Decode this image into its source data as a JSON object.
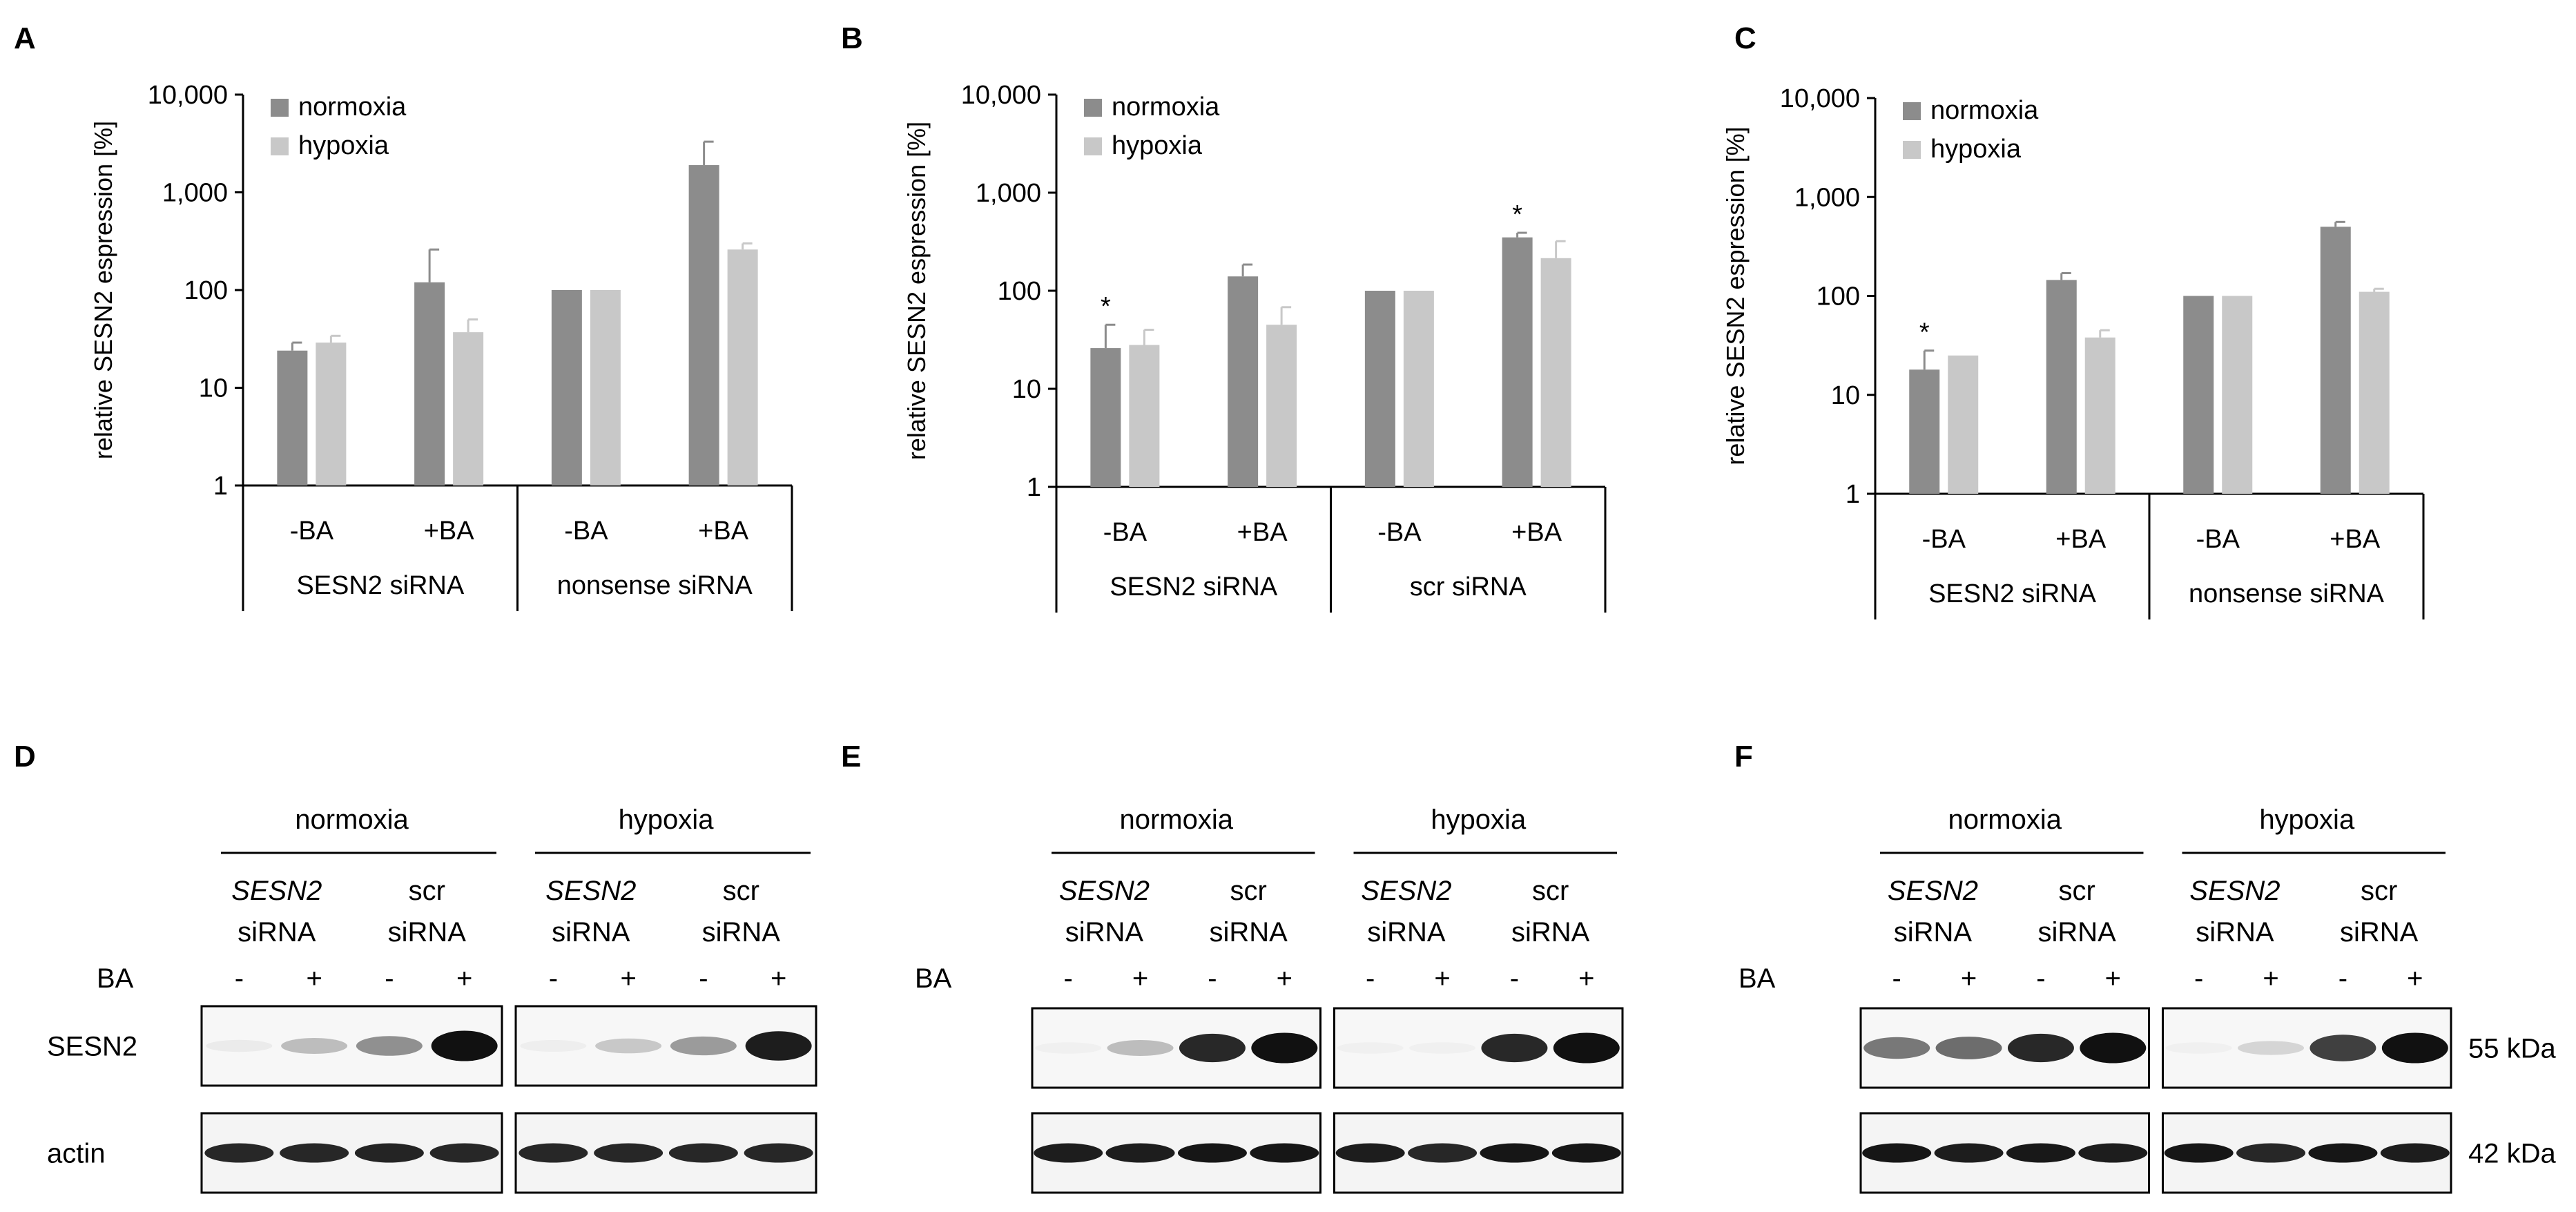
{
  "colors": {
    "normoxia": "#8c8c8c",
    "hypoxia": "#c8c8c8",
    "axis": "#000000"
  },
  "chart_data": [
    {
      "panel": "A",
      "type": "bar",
      "log_scale": true,
      "ylabel": "relative SESN2 espression [%]",
      "ylim": [
        1,
        10000
      ],
      "yticks": [
        "1",
        "10",
        "100",
        "1,000",
        "10,000"
      ],
      "categories": [
        "-BA",
        "+BA",
        "-BA",
        "+BA"
      ],
      "groups": [
        "SESN2 siRNA",
        "nonsense siRNA"
      ],
      "legend_position": "top-left",
      "series": [
        {
          "name": "normoxia",
          "values": [
            24,
            120,
            100,
            1900
          ],
          "errors": [
            29,
            260,
            100,
            3300
          ]
        },
        {
          "name": "hypoxia",
          "values": [
            29,
            37,
            100,
            260
          ],
          "errors": [
            34,
            50,
            100,
            300
          ]
        }
      ],
      "annotations": []
    },
    {
      "panel": "B",
      "type": "bar",
      "log_scale": true,
      "ylabel": "relative SESN2 espression [%]",
      "ylim": [
        1,
        10000
      ],
      "yticks": [
        "1",
        "10",
        "100",
        "1,000",
        "10,000"
      ],
      "categories": [
        "-BA",
        "+BA",
        "-BA",
        "+BA"
      ],
      "groups": [
        "SESN2 siRNA",
        "scr siRNA"
      ],
      "legend_position": "top-left",
      "series": [
        {
          "name": "normoxia",
          "values": [
            26,
            140,
            100,
            350
          ],
          "errors": [
            45,
            185,
            100,
            390
          ]
        },
        {
          "name": "hypoxia",
          "values": [
            28,
            45,
            100,
            215
          ],
          "errors": [
            40,
            68,
            100,
            320
          ]
        }
      ],
      "annotations": [
        {
          "label": "*",
          "bar_index": 0,
          "series": 0
        },
        {
          "label": "*",
          "bar_index": 3,
          "series": 0
        }
      ]
    },
    {
      "panel": "C",
      "type": "bar",
      "log_scale": true,
      "ylabel": "relative SESN2 espression [%]",
      "ylim": [
        1,
        10000
      ],
      "yticks": [
        "1",
        "10",
        "100",
        "1,000",
        "10,000"
      ],
      "categories": [
        "-BA",
        "+BA",
        "-BA",
        "+BA"
      ],
      "groups": [
        "SESN2 siRNA",
        "nonsense siRNA"
      ],
      "legend_position": "top-left",
      "series": [
        {
          "name": "normoxia",
          "values": [
            18,
            145,
            100,
            500
          ],
          "errors": [
            28,
            170,
            100,
            560
          ]
        },
        {
          "name": "hypoxia",
          "values": [
            25,
            38,
            100,
            110
          ],
          "errors": [
            25,
            45,
            100,
            118
          ]
        }
      ],
      "annotations": [
        {
          "label": "*",
          "bar_index": 0,
          "series": 0
        }
      ]
    }
  ],
  "blots": [
    {
      "panel": "D",
      "conditions": [
        "normoxia",
        "hypoxia"
      ],
      "siRNA": [
        {
          "line1": "SESN2",
          "line1_italic": true,
          "line2": "siRNA"
        },
        {
          "line1": "scr",
          "line1_italic": false,
          "line2": "siRNA"
        }
      ],
      "ba_label": "BA",
      "ba_signs": [
        "-",
        "+",
        "-",
        "+"
      ],
      "row_labels": [
        "SESN2",
        "actin"
      ],
      "size_labels": [],
      "sesn2_intensity": [
        [
          0.05,
          0.25,
          0.45,
          1.0
        ],
        [
          0.04,
          0.2,
          0.4,
          0.95
        ]
      ],
      "actin_intensity": [
        [
          0.9,
          0.9,
          0.92,
          0.9
        ],
        [
          0.9,
          0.9,
          0.9,
          0.9
        ]
      ]
    },
    {
      "panel": "E",
      "conditions": [
        "normoxia",
        "hypoxia"
      ],
      "siRNA": [
        {
          "line1": "SESN2",
          "line1_italic": true,
          "line2": "siRNA"
        },
        {
          "line1": "scr",
          "line1_italic": false,
          "line2": "siRNA"
        }
      ],
      "ba_label": "BA",
      "ba_signs": [
        "-",
        "+",
        "-",
        "+"
      ],
      "row_labels": [],
      "size_labels": [],
      "sesn2_intensity": [
        [
          0.02,
          0.25,
          0.9,
          1.0
        ],
        [
          0.02,
          0.02,
          0.9,
          1.0
        ]
      ],
      "actin_intensity": [
        [
          0.95,
          0.95,
          0.98,
          0.98
        ],
        [
          0.95,
          0.9,
          0.98,
          0.98
        ]
      ]
    },
    {
      "panel": "F",
      "conditions": [
        "normoxia",
        "hypoxia"
      ],
      "siRNA": [
        {
          "line1": "SESN2",
          "line1_italic": true,
          "line2": "siRNA"
        },
        {
          "line1": "scr",
          "line1_italic": false,
          "line2": "siRNA"
        }
      ],
      "ba_label": "BA",
      "ba_signs": [
        "-",
        "+",
        "-",
        "+"
      ],
      "row_labels": [],
      "size_labels": [
        "55 kDa",
        "42 kDa"
      ],
      "sesn2_intensity": [
        [
          0.55,
          0.6,
          0.9,
          1.0
        ],
        [
          0.02,
          0.15,
          0.8,
          1.0
        ]
      ],
      "actin_intensity": [
        [
          0.98,
          0.95,
          0.97,
          0.95
        ],
        [
          0.98,
          0.9,
          0.98,
          0.95
        ]
      ]
    }
  ]
}
